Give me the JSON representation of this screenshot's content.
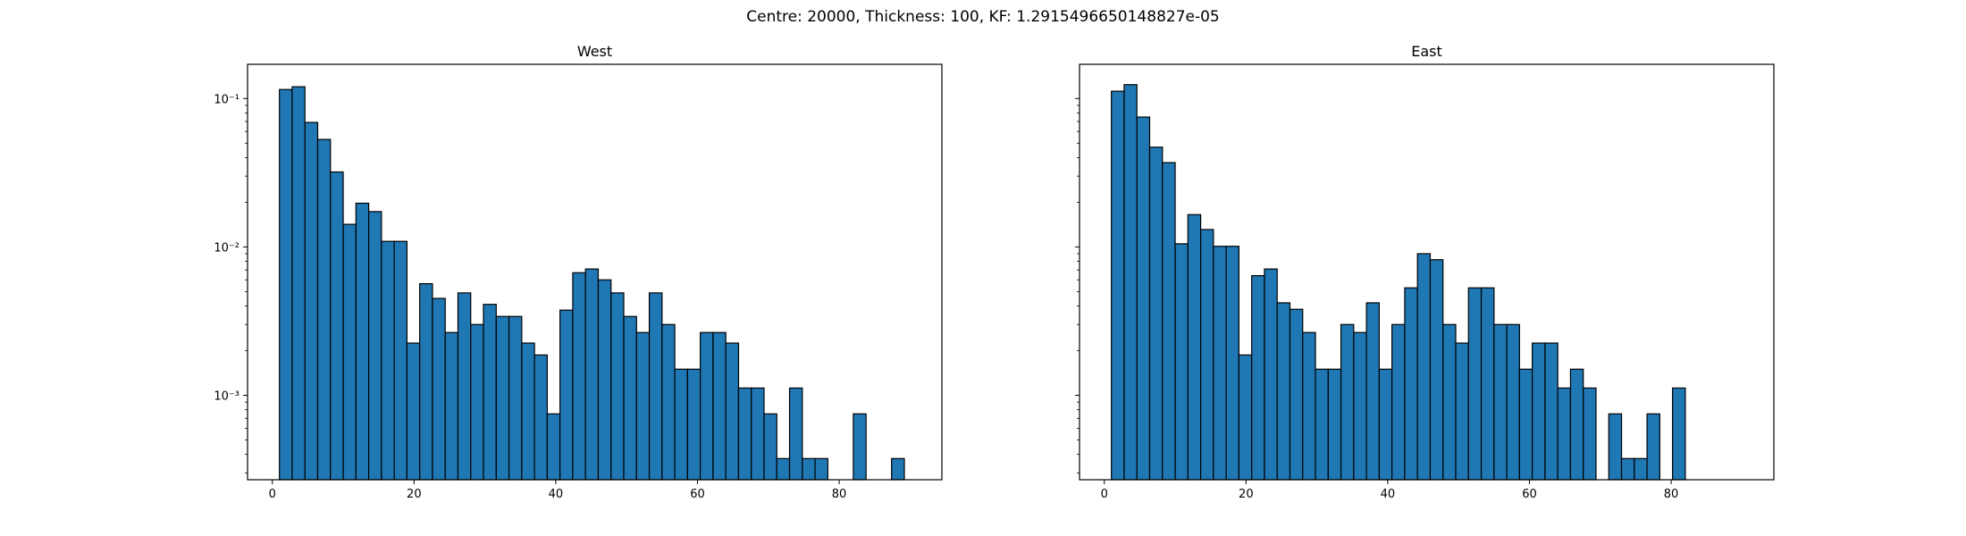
{
  "figure": {
    "suptitle": "Centre: 20000, Thickness: 100, KF: 1.2915496650148827e-05"
  },
  "style": {
    "bar_color": "#1f77b4",
    "edge_color": "#000000"
  },
  "chart_data": [
    {
      "type": "bar",
      "title": "West",
      "xlabel": "",
      "ylabel": "",
      "yscale": "log",
      "xlim": [
        -3.5,
        94.5
      ],
      "ylim": [
        0.00027,
        0.17
      ],
      "xticks": [
        0,
        20,
        40,
        60,
        80
      ],
      "xtick_labels": [
        "0",
        "20",
        "40",
        "60",
        "80"
      ],
      "yticks": [
        0.001,
        0.01,
        0.1
      ],
      "ytick_labels": [
        "10⁻³",
        "10⁻²",
        "10⁻¹"
      ],
      "bin_width": 1.8,
      "bin_edges_start": 1,
      "values": [
        0.115,
        0.12,
        0.069,
        0.053,
        0.032,
        0.0142,
        0.0197,
        0.0173,
        0.0109,
        0.0109,
        0.00225,
        0.00565,
        0.0045,
        0.00265,
        0.0049,
        0.003,
        0.0041,
        0.0034,
        0.0034,
        0.00225,
        0.00187,
        0.00075,
        0.00375,
        0.0067,
        0.0071,
        0.006,
        0.0049,
        0.0034,
        0.00265,
        0.0049,
        0.003,
        0.0015,
        0.0015,
        0.00265,
        0.00265,
        0.00225,
        0.00112,
        0.00112,
        0.00075,
        0.000375,
        0.00112,
        0.000375,
        0.000375,
        null,
        null,
        0.00075,
        null,
        null,
        0.000375
      ],
      "grid": false,
      "legend": "none"
    },
    {
      "type": "bar",
      "title": "East",
      "xlabel": "",
      "ylabel": "",
      "yscale": "log",
      "xlim": [
        -3.5,
        94.5
      ],
      "ylim": [
        0.00027,
        0.17
      ],
      "xticks": [
        0,
        20,
        40,
        60,
        80
      ],
      "xtick_labels": [
        "0",
        "20",
        "40",
        "60",
        "80"
      ],
      "yticks": [
        0.001,
        0.01,
        0.1
      ],
      "ytick_labels": [],
      "bin_width": 1.8,
      "bin_edges_start": 1,
      "values": [
        0.112,
        0.124,
        0.075,
        0.047,
        0.037,
        0.0105,
        0.0165,
        0.0131,
        0.0101,
        0.0101,
        0.00187,
        0.0064,
        0.0071,
        0.0042,
        0.0038,
        0.00265,
        0.0015,
        0.0015,
        0.003,
        0.00265,
        0.0042,
        0.0015,
        0.003,
        0.0053,
        0.009,
        0.0082,
        0.003,
        0.00225,
        0.0053,
        0.0053,
        0.003,
        0.003,
        0.0015,
        0.00225,
        0.00225,
        0.00112,
        0.0015,
        0.00112,
        null,
        0.00075,
        0.000375,
        0.000375,
        0.00075,
        null,
        0.00112
      ],
      "grid": false,
      "legend": "none"
    }
  ]
}
